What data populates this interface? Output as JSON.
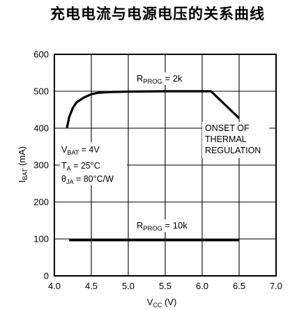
{
  "chart_data": {
    "type": "line",
    "title": "充电电流与电源电压的关系曲线",
    "xlabel": {
      "main": "V",
      "sub": "CC",
      "unit": " (V)"
    },
    "ylabel": {
      "main": "I",
      "sub": "BAT",
      "unit": " (mA)"
    },
    "xlim": [
      4.0,
      7.0
    ],
    "ylim": [
      0,
      600
    ],
    "xticks": [
      4.0,
      4.5,
      5.0,
      5.5,
      6.0,
      6.5,
      7.0
    ],
    "xtick_labels": [
      "4.0",
      "4.5",
      "5.0",
      "5.5",
      "6.0",
      "6.5",
      "7.0"
    ],
    "yticks": [
      0,
      100,
      200,
      300,
      400,
      500,
      600
    ],
    "ytick_labels": [
      "0",
      "100",
      "200",
      "300",
      "400",
      "500",
      "600"
    ],
    "grid": true,
    "series": [
      {
        "name": "RPROG = 2k",
        "label": {
          "main": "R",
          "sub": "PROG",
          "tail": " = 2k"
        },
        "points": [
          [
            4.17,
            400
          ],
          [
            4.2,
            430
          ],
          [
            4.25,
            455
          ],
          [
            4.3,
            470
          ],
          [
            4.4,
            483
          ],
          [
            4.5,
            492
          ],
          [
            4.6,
            496
          ],
          [
            4.75,
            498
          ],
          [
            5.0,
            499
          ],
          [
            5.5,
            500
          ],
          [
            6.0,
            500
          ],
          [
            6.12,
            500
          ],
          [
            6.5,
            427
          ]
        ]
      },
      {
        "name": "RPROG = 10k",
        "label": {
          "main": "R",
          "sub": "PROG",
          "tail": " = 10k"
        },
        "points": [
          [
            4.2,
            97
          ],
          [
            5.0,
            97
          ],
          [
            6.0,
            97
          ],
          [
            6.5,
            97
          ]
        ]
      }
    ],
    "annotations": {
      "conditions": [
        {
          "main": "V",
          "sub": "BAT",
          "tail": " = 4V"
        },
        {
          "main": "T",
          "sub": "A",
          "tail": " = 25°C"
        },
        {
          "main": "θ",
          "sub": "JA",
          "tail": " = 80°C/W"
        }
      ],
      "note": [
        "ONSET OF",
        "THERMAL",
        "REGULATION"
      ]
    }
  }
}
